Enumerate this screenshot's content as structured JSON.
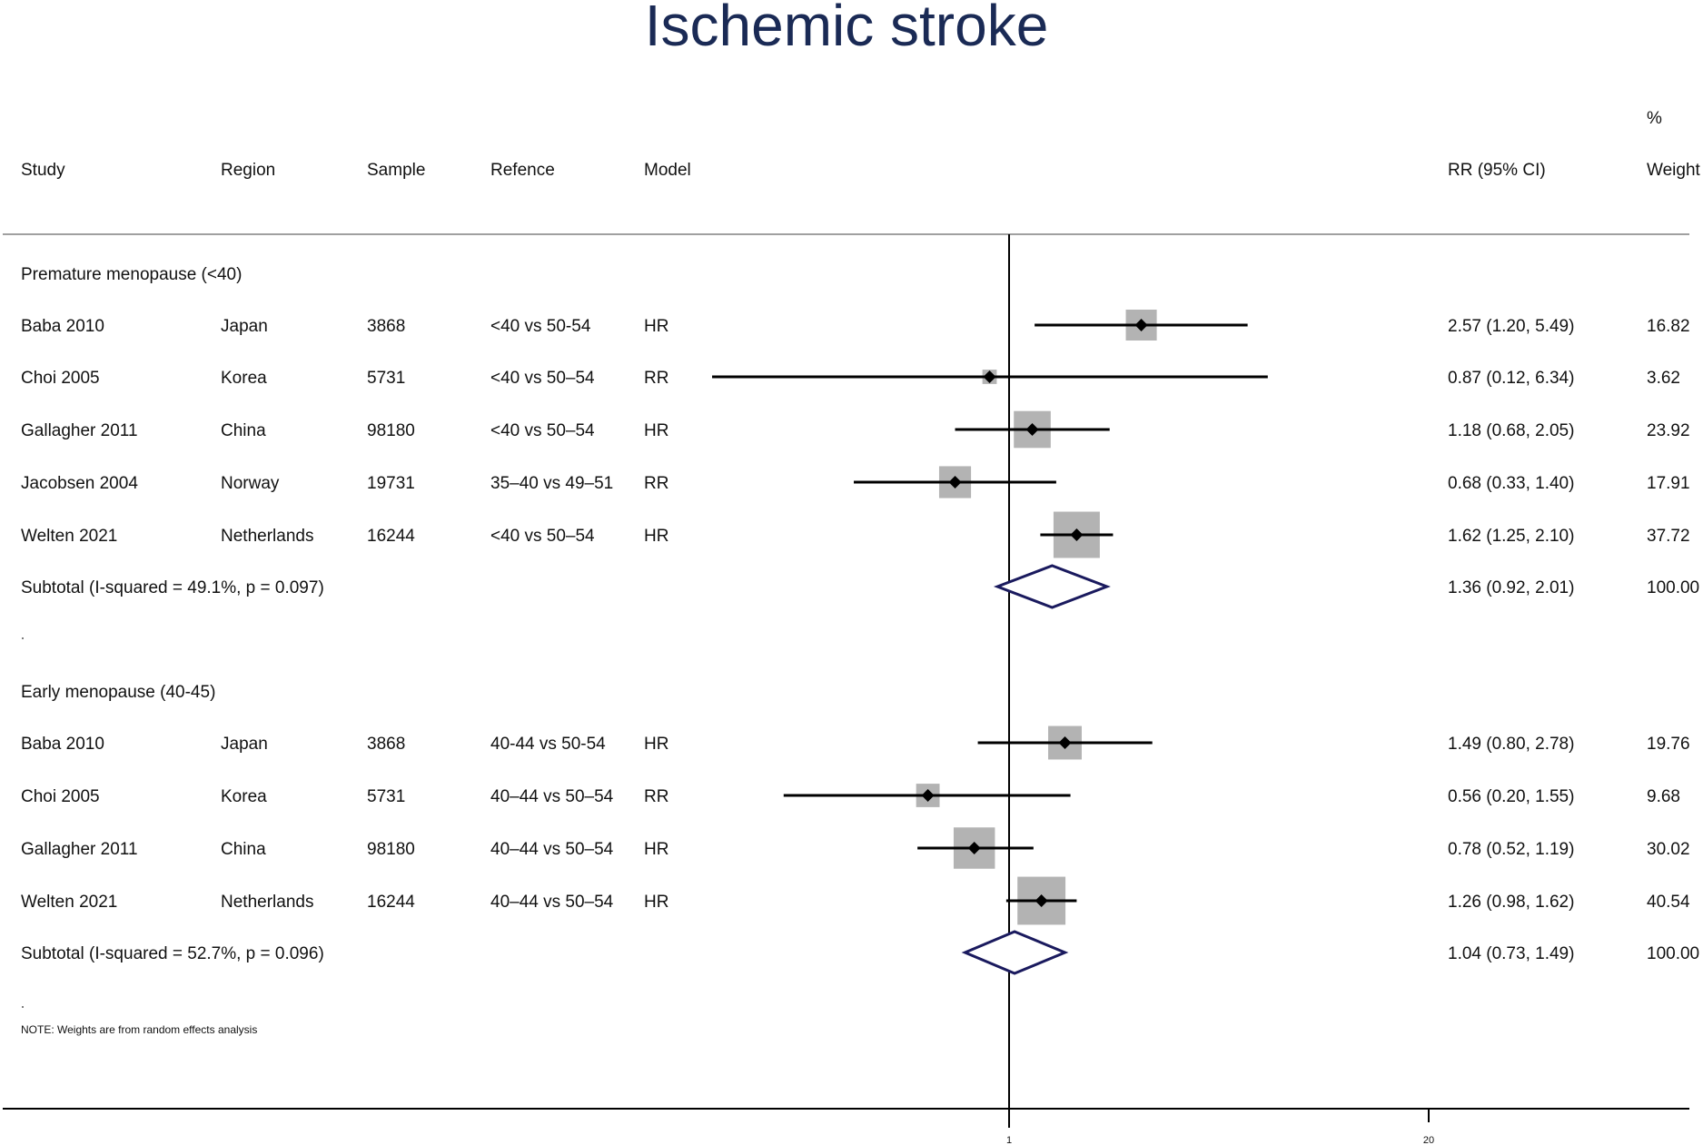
{
  "chart_data": {
    "type": "forest",
    "title": "Ischemic stroke",
    "columns": {
      "study": "Study",
      "region": "Region",
      "sample": "Sample",
      "reference": "Refence",
      "model": "Model",
      "rr": "RR (95% CI)",
      "weight_line1": "%",
      "weight_line2": "Weight"
    },
    "groups": [
      {
        "label": "Premature menopause (<40)",
        "studies": [
          {
            "study": "Baba 2010",
            "region": "Japan",
            "sample": "3868",
            "reference": "<40 vs 50-54",
            "model": "HR",
            "rr": 2.57,
            "lo": 1.2,
            "hi": 5.49,
            "rr_text": "2.57 (1.20, 5.49)",
            "weight": 16.82,
            "weight_text": "16.82"
          },
          {
            "study": "Choi 2005",
            "region": "Korea",
            "sample": "5731",
            "reference": "<40 vs 50–54",
            "model": "RR",
            "rr": 0.87,
            "lo": 0.12,
            "hi": 6.34,
            "rr_text": "0.87 (0.12, 6.34)",
            "weight": 3.62,
            "weight_text": "3.62"
          },
          {
            "study": "Gallagher 2011",
            "region": "China",
            "sample": "98180",
            "reference": "<40 vs 50–54",
            "model": "HR",
            "rr": 1.18,
            "lo": 0.68,
            "hi": 2.05,
            "rr_text": "1.18 (0.68, 2.05)",
            "weight": 23.92,
            "weight_text": "23.92"
          },
          {
            "study": "Jacobsen 2004",
            "region": "Norway",
            "sample": "19731",
            "reference": "35–40 vs 49–51",
            "model": "RR",
            "rr": 0.68,
            "lo": 0.33,
            "hi": 1.4,
            "rr_text": "0.68 (0.33, 1.40)",
            "weight": 17.91,
            "weight_text": "17.91"
          },
          {
            "study": "Welten 2021",
            "region": "Netherlands",
            "sample": "16244",
            "reference": "<40 vs 50–54",
            "model": "HR",
            "rr": 1.62,
            "lo": 1.25,
            "hi": 2.1,
            "rr_text": "1.62 (1.25, 2.10)",
            "weight": 37.72,
            "weight_text": "37.72"
          }
        ],
        "subtotal": {
          "label": "Subtotal  (I-squared = 49.1%, p = 0.097)",
          "rr": 1.36,
          "lo": 0.92,
          "hi": 2.01,
          "rr_text": "1.36 (0.92, 2.01)",
          "weight_text": "100.00"
        }
      },
      {
        "label": "Early menopause (40-45)",
        "studies": [
          {
            "study": "Baba 2010",
            "region": "Japan",
            "sample": "3868",
            "reference": "40-44 vs 50-54",
            "model": "HR",
            "rr": 1.49,
            "lo": 0.8,
            "hi": 2.78,
            "rr_text": "1.49 (0.80, 2.78)",
            "weight": 19.76,
            "weight_text": "19.76"
          },
          {
            "study": "Choi 2005",
            "region": "Korea",
            "sample": "5731",
            "reference": "40–44 vs 50–54",
            "model": "RR",
            "rr": 0.56,
            "lo": 0.2,
            "hi": 1.55,
            "rr_text": "0.56 (0.20, 1.55)",
            "weight": 9.68,
            "weight_text": "9.68"
          },
          {
            "study": "Gallagher 2011",
            "region": "China",
            "sample": "98180",
            "reference": "40–44 vs 50–54",
            "model": "HR",
            "rr": 0.78,
            "lo": 0.52,
            "hi": 1.19,
            "rr_text": "0.78 (0.52, 1.19)",
            "weight": 30.02,
            "weight_text": "30.02"
          },
          {
            "study": "Welten 2021",
            "region": "Netherlands",
            "sample": "16244",
            "reference": "40–44 vs 50–54",
            "model": "HR",
            "rr": 1.26,
            "lo": 0.98,
            "hi": 1.62,
            "rr_text": "1.26 (0.98, 1.62)",
            "weight": 40.54,
            "weight_text": "40.54"
          }
        ],
        "subtotal": {
          "label": "Subtotal  (I-squared = 52.7%, p = 0.096)",
          "rr": 1.04,
          "lo": 0.73,
          "hi": 1.49,
          "rr_text": "1.04 (0.73, 1.49)",
          "weight_text": "100.00"
        }
      }
    ],
    "note": "NOTE: Weights are from random effects analysis",
    "x_axis": {
      "scale": "log",
      "ticks": [
        1,
        20
      ],
      "tick_labels": [
        "1",
        "20"
      ]
    },
    "colors": {
      "box": "#b3b3b3",
      "point": "#000000",
      "diamond": "#1a1a5e",
      "title": "#1a2a55"
    }
  }
}
